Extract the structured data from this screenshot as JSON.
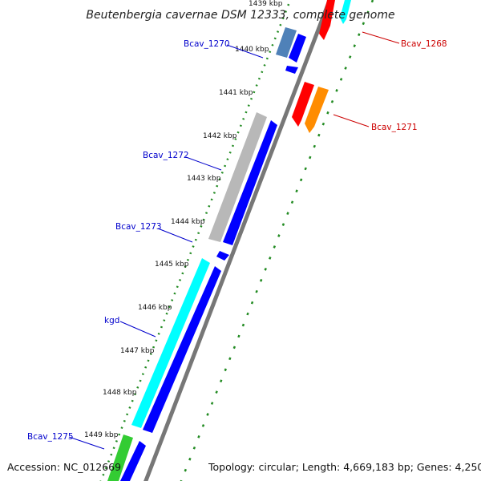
{
  "title": "Beutenbergia cavernae DSM 12333, complete genome",
  "footer": {
    "accession": "Accession: NC_012669",
    "topology": "Topology: circular; Length: 4,669,183 bp; Genes: 4,250"
  },
  "ticks": [
    "1439 kbp",
    "1440 kbp",
    "1441 kbp",
    "1442 kbp",
    "1443 kbp",
    "1444 kbp",
    "1445 kbp",
    "1446 kbp",
    "1447 kbp",
    "1448 kbp",
    "1449 kbp"
  ],
  "genes": [
    {
      "id": "Bcav_1268",
      "label": "Bcav_1268",
      "strand": "reverse",
      "color": "#ff0000"
    },
    {
      "id": "Bcav_1270",
      "label": "Bcav_1270",
      "strand": "forward",
      "color": "#4f81b8"
    },
    {
      "id": "Bcav_1271",
      "label": "Bcav_1271",
      "strand": "reverse",
      "color": "#ff8c00"
    },
    {
      "id": "Bcav_1272",
      "label": "Bcav_1272",
      "strand": "forward",
      "color": "#c0c0c0"
    },
    {
      "id": "Bcav_1273",
      "label": "Bcav_1273",
      "strand": "forward",
      "color": "#0000ff"
    },
    {
      "id": "kgd",
      "label": "kgd",
      "strand": "forward",
      "color": "#00ffff"
    },
    {
      "id": "Bcav_1275",
      "label": "Bcav_1275",
      "strand": "forward",
      "color": "#33cc33"
    }
  ],
  "colors": {
    "forward_label": "#0000cc",
    "reverse_label": "#cc0000",
    "cds": "#0000ff",
    "backbone": "#808080",
    "gc_dots": "#228b22"
  }
}
